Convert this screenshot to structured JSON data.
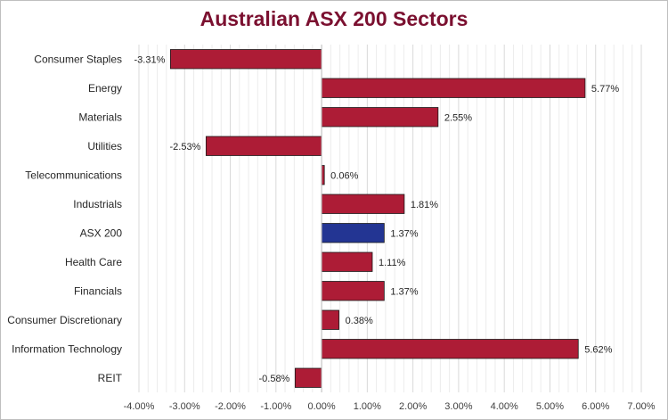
{
  "chart_data": {
    "type": "bar",
    "orientation": "horizontal",
    "title": "Australian ASX 200 Sectors",
    "categories": [
      "Consumer Staples",
      "Energy",
      "Materials",
      "Utilities",
      "Telecommunications",
      "Industrials",
      "ASX 200",
      "Health Care",
      "Financials",
      "Consumer Discretionary",
      "Information Technology",
      "REIT"
    ],
    "values": [
      -3.31,
      5.77,
      2.55,
      -2.53,
      0.06,
      1.81,
      1.37,
      1.11,
      1.37,
      0.38,
      5.62,
      -0.58
    ],
    "data_labels": [
      "-3.31%",
      "5.77%",
      "2.55%",
      "-2.53%",
      "0.06%",
      "1.81%",
      "1.37%",
      "1.11%",
      "1.37%",
      "0.38%",
      "5.62%",
      "-0.58%"
    ],
    "xlim": [
      -4,
      7
    ],
    "xticks": [
      -4,
      -3,
      -2,
      -1,
      0,
      1,
      2,
      3,
      4,
      5,
      6,
      7
    ],
    "xtick_labels": [
      "-4.00%",
      "-3.00%",
      "-2.00%",
      "-1.00%",
      "0.00%",
      "1.00%",
      "2.00%",
      "3.00%",
      "4.00%",
      "5.00%",
      "6.00%",
      "7.00%"
    ],
    "xlabel": "",
    "ylabel": "",
    "grid": "vertical minor",
    "legend": "none",
    "colors": {
      "bar": "#ad1c36",
      "highlight": "#233593",
      "highlight_category": "ASX 200",
      "title": "#7b1030"
    }
  }
}
